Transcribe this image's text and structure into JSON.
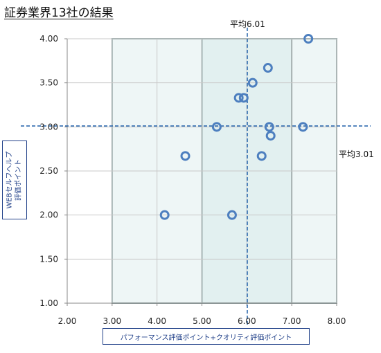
{
  "title": "証券業界13社の結果",
  "chart_data": {
    "type": "scatter",
    "xlabel": "パフォーマンス評価ポイント+クオリティ評価ポイント",
    "ylabel_lines": [
      "WEBセルフヘルプ",
      "評価ポイント"
    ],
    "xlim": [
      2.0,
      8.0
    ],
    "ylim": [
      1.0,
      4.0
    ],
    "x_ticks": [
      "2.00",
      "3.00",
      "4.00",
      "5.00",
      "6.00",
      "7.00",
      "8.00"
    ],
    "y_ticks": [
      "1.00",
      "1.50",
      "2.00",
      "2.50",
      "3.00",
      "3.50",
      "4.00"
    ],
    "grid": true,
    "shaded_zones": [
      {
        "x": [
          3.0,
          5.0
        ],
        "color": "#eef6f6"
      },
      {
        "x": [
          5.0,
          7.0
        ],
        "color": "#e2f0f0"
      },
      {
        "x": [
          7.0,
          8.0
        ],
        "color": "#eef6f6"
      }
    ],
    "reference_lines": {
      "x": {
        "value": 6.01,
        "label": "平均6.01"
      },
      "y": {
        "value": 3.01,
        "label": "平均3.01"
      }
    },
    "points": [
      {
        "x": 7.37,
        "y": 4.0
      },
      {
        "x": 6.47,
        "y": 3.67
      },
      {
        "x": 6.13,
        "y": 3.5
      },
      {
        "x": 5.82,
        "y": 3.33
      },
      {
        "x": 5.93,
        "y": 3.33
      },
      {
        "x": 5.33,
        "y": 3.0
      },
      {
        "x": 6.5,
        "y": 3.0
      },
      {
        "x": 7.25,
        "y": 3.0
      },
      {
        "x": 6.53,
        "y": 2.9
      },
      {
        "x": 4.63,
        "y": 2.67
      },
      {
        "x": 6.33,
        "y": 2.67
      },
      {
        "x": 4.17,
        "y": 2.0
      },
      {
        "x": 5.67,
        "y": 2.0
      }
    ],
    "colors": {
      "marker": "#4d7fbf",
      "reference": "#1f5fa8",
      "grid": "#c8c8c8",
      "zone_border": "#8fa5a5",
      "axis_label": "#1f3f88"
    }
  }
}
